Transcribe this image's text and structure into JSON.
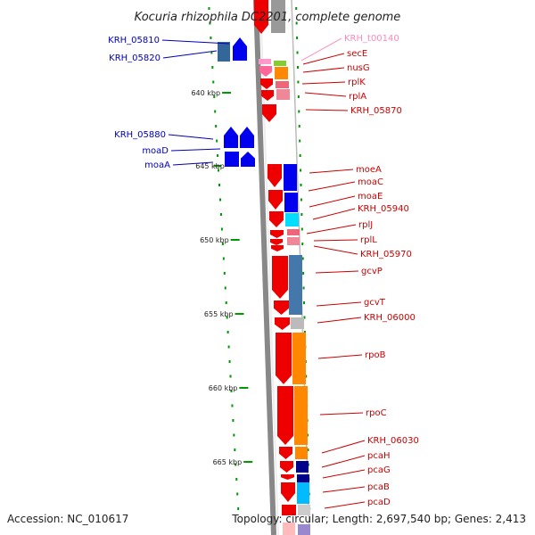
{
  "title": "Kocuria rhizophila DC2201, complete genome",
  "footer": {
    "accession": "Accession: NC_010617",
    "topology": "Topology: circular; Length: 2,697,540 bp; Genes: 2,413"
  },
  "colors": {
    "plus_strand": "#0000ee",
    "minus_strand": "#ee0000",
    "trna": "#ff99cc",
    "label_blue": "#0000bb",
    "label_red": "#cc0000",
    "label_pink": "#ff88bb",
    "tick_green": "#009900"
  },
  "kbp_ticks": [
    {
      "label": "640 kbp"
    },
    {
      "label": "645 kbp"
    },
    {
      "label": "650 kbp"
    },
    {
      "label": "655 kbp"
    },
    {
      "label": "660 kbp"
    },
    {
      "label": "665 kbp"
    }
  ],
  "left_genes": [
    {
      "name": "KRH_05810"
    },
    {
      "name": "KRH_05820"
    },
    {
      "name": "KRH_05880"
    },
    {
      "name": "moaD"
    },
    {
      "name": "moaA"
    }
  ],
  "right_genes": [
    {
      "name": "KRH_t00140",
      "color": "pink"
    },
    {
      "name": "secE"
    },
    {
      "name": "nusG"
    },
    {
      "name": "rplK"
    },
    {
      "name": "rplA"
    },
    {
      "name": "KRH_05870"
    },
    {
      "name": "moeA"
    },
    {
      "name": "moaC"
    },
    {
      "name": "moaE"
    },
    {
      "name": "KRH_05940"
    },
    {
      "name": "rplJ"
    },
    {
      "name": "rplL"
    },
    {
      "name": "KRH_05970"
    },
    {
      "name": "gcvP"
    },
    {
      "name": "gcvT"
    },
    {
      "name": "KRH_06000"
    },
    {
      "name": "rpoB"
    },
    {
      "name": "rpoC"
    },
    {
      "name": "KRH_06030"
    },
    {
      "name": "pcaH"
    },
    {
      "name": "pcaG"
    },
    {
      "name": "pcaB"
    },
    {
      "name": "pcaD"
    }
  ]
}
